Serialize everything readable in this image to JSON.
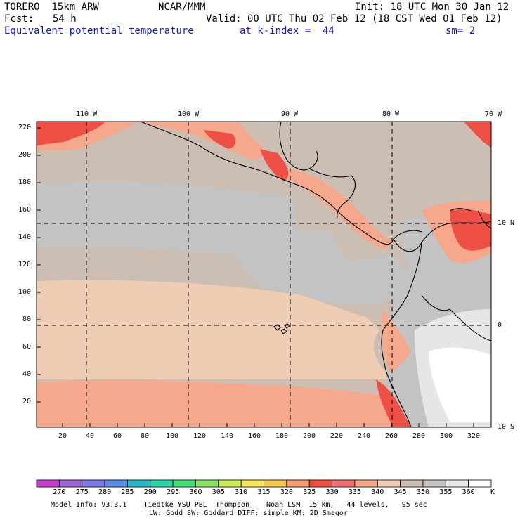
{
  "header": {
    "model_name": "TORERO  15km ARW",
    "org": "NCAR/MMM",
    "init": "Init: 18 UTC Mon 30 Jan 12",
    "fcst_label": "Fcst:",
    "fcst_hours": "54 h",
    "valid": "Valid: 00 UTC Thu 02 Feb 12 (18 CST Wed 01 Feb 12)",
    "field": "Equivalent potential temperature",
    "level": "at k-index =  44",
    "smoothing": "sm= 2"
  },
  "map": {
    "top_lon_labels": [
      "110 W",
      "100 W",
      "90 W",
      "80 W",
      "70 W"
    ],
    "right_lat_labels": [
      "10 N",
      "0",
      "10 S"
    ],
    "y_ticks": [
      "220",
      "200",
      "180",
      "160",
      "140",
      "120",
      "100",
      "80",
      "60",
      "40",
      "20"
    ],
    "x_ticks": [
      "20",
      "40",
      "60",
      "80",
      "100",
      "120",
      "140",
      "160",
      "180",
      "200",
      "220",
      "240",
      "260",
      "280",
      "300",
      "320"
    ]
  },
  "colorbar": {
    "unit": "K",
    "labels": [
      "270",
      "275",
      "280",
      "285",
      "290",
      "295",
      "300",
      "305",
      "310",
      "315",
      "320",
      "325",
      "330",
      "335",
      "340",
      "345",
      "350",
      "355",
      "360"
    ],
    "colors": [
      "#c83ccc",
      "#9b64d2",
      "#7c78e6",
      "#5a8ce8",
      "#2ab8c8",
      "#2ed2a8",
      "#48dc78",
      "#8ce264",
      "#c8ec5a",
      "#f5e65a",
      "#f5c850",
      "#f49c6e",
      "#ee5046",
      "#f06e6e",
      "#f5a88c",
      "#eecdb4",
      "#cdbeb4",
      "#c3c3c3",
      "#e6e6e6",
      "#ffffff"
    ]
  },
  "footer": {
    "line1": "Model Info: V3.3.1    Tiedtke YSU PBL  Thompson    Noah LSM  15 km,   44 levels,   95 sec",
    "line2": "LW: Godd SW: Goddard DIFF: simple KM: 2D Smagor"
  }
}
